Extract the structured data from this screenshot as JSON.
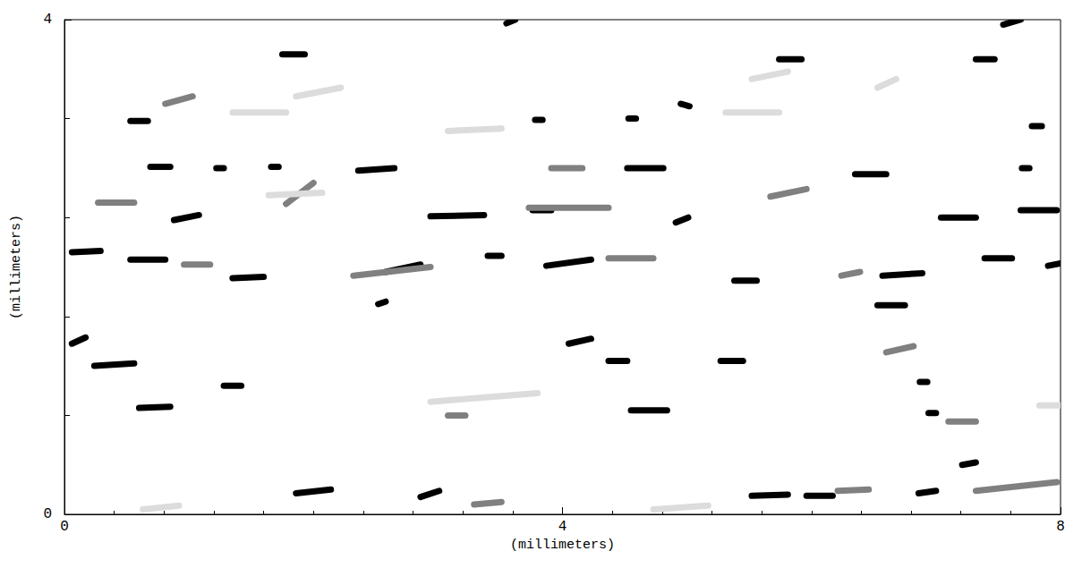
{
  "chart_data": {
    "type": "segments",
    "xlabel": "(millimeters)",
    "ylabel": "(millimeters)",
    "xlim": [
      0,
      8
    ],
    "ylim": [
      0,
      4
    ],
    "xticks": [
      0,
      4,
      8
    ],
    "yticks": [
      0,
      4
    ],
    "grid": false,
    "colors": [
      "#dcdcdc",
      "#808080",
      "#000000"
    ],
    "strokes": [
      [
        0.53,
        3.18,
        0.67,
        3.18,
        3
      ],
      [
        0.69,
        2.81,
        0.85,
        2.81,
        3
      ],
      [
        0.88,
        2.38,
        1.08,
        2.42,
        3
      ],
      [
        0.06,
        2.12,
        0.29,
        2.13,
        3
      ],
      [
        0.53,
        2.06,
        0.81,
        2.06,
        3
      ],
      [
        1.35,
        1.91,
        1.6,
        1.92,
        3
      ],
      [
        0.06,
        1.38,
        0.17,
        1.43,
        3
      ],
      [
        0.24,
        1.2,
        0.56,
        1.22,
        3
      ],
      [
        1.28,
        1.04,
        1.42,
        1.04,
        3
      ],
      [
        0.6,
        0.86,
        0.85,
        0.87,
        3
      ],
      [
        1.22,
        2.8,
        1.28,
        2.8,
        3
      ],
      [
        1.75,
        3.72,
        1.93,
        3.72,
        3
      ],
      [
        1.66,
        2.81,
        1.72,
        2.81,
        3
      ],
      [
        2.36,
        2.78,
        2.65,
        2.8,
        3
      ],
      [
        1.86,
        0.17,
        2.14,
        0.2,
        3
      ],
      [
        2.58,
        1.96,
        2.86,
        2.02,
        3
      ],
      [
        2.52,
        1.7,
        2.58,
        1.72,
        3
      ],
      [
        2.94,
        2.41,
        3.37,
        2.42,
        3
      ],
      [
        2.86,
        0.14,
        3.01,
        0.19,
        3
      ],
      [
        3.4,
        2.09,
        3.51,
        2.09,
        3
      ],
      [
        3.76,
        2.46,
        3.91,
        2.46,
        3
      ],
      [
        3.78,
        3.19,
        3.84,
        3.19,
        3
      ],
      [
        3.55,
        3.97,
        3.62,
        4.0,
        3
      ],
      [
        3.87,
        2.01,
        4.23,
        2.06,
        3
      ],
      [
        4.05,
        1.38,
        4.23,
        1.42,
        3
      ],
      [
        4.37,
        1.24,
        4.52,
        1.24,
        3
      ],
      [
        4.53,
        3.2,
        4.59,
        3.2,
        3
      ],
      [
        4.52,
        2.8,
        4.81,
        2.8,
        3
      ],
      [
        4.91,
        2.36,
        5.01,
        2.4,
        3
      ],
      [
        4.95,
        3.32,
        5.02,
        3.3,
        3
      ],
      [
        4.55,
        0.84,
        4.84,
        0.84,
        3
      ],
      [
        5.27,
        1.24,
        5.45,
        1.24,
        3
      ],
      [
        5.38,
        1.89,
        5.56,
        1.89,
        3
      ],
      [
        5.52,
        0.15,
        5.81,
        0.16,
        3
      ],
      [
        5.74,
        3.68,
        5.92,
        3.68,
        3
      ],
      [
        5.96,
        0.15,
        6.17,
        0.15,
        3
      ],
      [
        6.35,
        2.75,
        6.6,
        2.75,
        3
      ],
      [
        6.57,
        1.93,
        6.89,
        1.95,
        3
      ],
      [
        6.53,
        1.69,
        6.75,
        1.69,
        3
      ],
      [
        7.04,
        2.4,
        7.32,
        2.4,
        3
      ],
      [
        6.87,
        1.07,
        6.93,
        1.07,
        3
      ],
      [
        6.86,
        0.17,
        7.0,
        0.19,
        3
      ],
      [
        7.32,
        3.68,
        7.47,
        3.68,
        3
      ],
      [
        7.54,
        3.96,
        7.68,
        4.0,
        3
      ],
      [
        7.77,
        3.14,
        7.85,
        3.14,
        3
      ],
      [
        7.69,
        2.8,
        7.75,
        2.8,
        3
      ],
      [
        7.68,
        2.46,
        7.97,
        2.46,
        3
      ],
      [
        7.39,
        2.07,
        7.61,
        2.07,
        3
      ],
      [
        7.9,
        2.01,
        8.0,
        2.03,
        3
      ],
      [
        7.21,
        0.4,
        7.32,
        0.42,
        3
      ],
      [
        6.94,
        0.82,
        7.0,
        0.82,
        3
      ],
      [
        0.81,
        3.32,
        1.03,
        3.38,
        2
      ],
      [
        0.27,
        2.52,
        0.56,
        2.52,
        2
      ],
      [
        0.96,
        2.02,
        1.17,
        2.02,
        2
      ],
      [
        2.32,
        1.93,
        2.94,
        2.0,
        2
      ],
      [
        1.78,
        2.51,
        2.0,
        2.68,
        2
      ],
      [
        3.73,
        2.48,
        4.37,
        2.48,
        2
      ],
      [
        4.37,
        2.07,
        4.73,
        2.07,
        2
      ],
      [
        3.29,
        0.08,
        3.51,
        0.1,
        2
      ],
      [
        3.08,
        0.8,
        3.22,
        0.8,
        2
      ],
      [
        7.32,
        0.19,
        7.97,
        0.26,
        2
      ],
      [
        6.6,
        1.31,
        6.82,
        1.36,
        2
      ],
      [
        6.21,
        0.19,
        6.46,
        0.2,
        2
      ],
      [
        5.67,
        2.57,
        5.96,
        2.63,
        2
      ],
      [
        6.24,
        1.93,
        6.39,
        1.96,
        2
      ],
      [
        7.1,
        0.75,
        7.32,
        0.75,
        2
      ],
      [
        3.91,
        2.8,
        4.16,
        2.8,
        2
      ],
      [
        1.35,
        3.25,
        1.78,
        3.25,
        1
      ],
      [
        5.31,
        3.25,
        5.74,
        3.25,
        1
      ],
      [
        2.94,
        0.91,
        3.8,
        0.98,
        1
      ],
      [
        1.86,
        3.38,
        2.22,
        3.45,
        1
      ],
      [
        4.73,
        0.04,
        5.17,
        0.07,
        1
      ],
      [
        0.63,
        0.04,
        0.92,
        0.07,
        1
      ],
      [
        6.53,
        3.45,
        6.68,
        3.52,
        1
      ],
      [
        7.83,
        0.88,
        8.0,
        0.88,
        1
      ],
      [
        5.52,
        3.52,
        5.81,
        3.58,
        1
      ],
      [
        3.08,
        3.1,
        3.51,
        3.12,
        1
      ],
      [
        1.64,
        2.58,
        2.07,
        2.6,
        1
      ]
    ]
  }
}
